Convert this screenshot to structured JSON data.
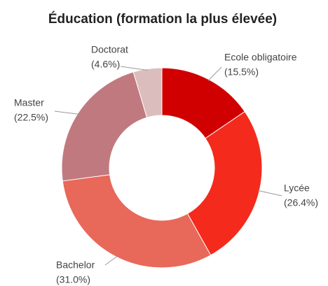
{
  "chart_data": {
    "type": "donut",
    "title": "Éducation (formation la plus élevée)",
    "categories": [
      "Ecole obligatoire",
      "Lycée",
      "Bachelor",
      "Master",
      "Doctorat"
    ],
    "values": [
      15.5,
      26.4,
      31.0,
      22.5,
      4.6
    ],
    "value_labels": [
      "(15.5%)",
      "(26.4%)",
      "(31.0%)",
      "(22.5%)",
      "(4.6%)"
    ],
    "colors": [
      "#d10000",
      "#f42a1c",
      "#e8685a",
      "#c07a7f",
      "#dcbdbd"
    ]
  }
}
